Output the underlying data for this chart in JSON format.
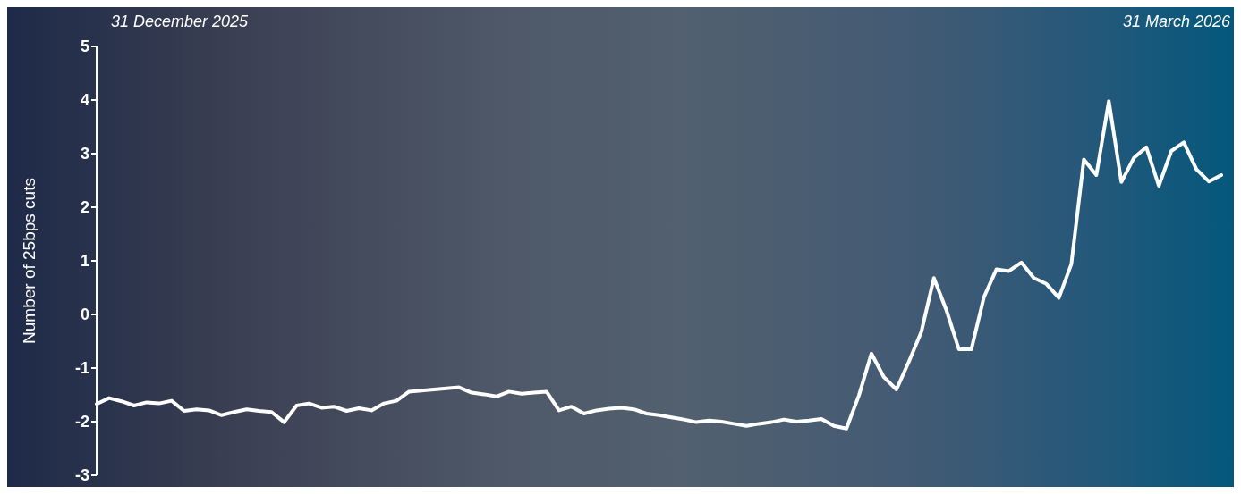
{
  "chart_data": {
    "type": "line",
    "ylabel": "Number of 25bps cuts",
    "annotations": [
      "31 December 2025",
      "31 March 2026"
    ],
    "ylim": [
      -3,
      5
    ],
    "yticks": [
      -3,
      -2,
      -1,
      0,
      1,
      2,
      3,
      4,
      5
    ],
    "grid": false,
    "marker": "none",
    "categories": [
      null,
      null,
      null,
      null,
      null,
      null,
      null,
      null,
      null,
      null,
      null,
      null,
      null,
      null,
      null,
      null,
      null,
      null,
      null,
      null,
      null,
      null,
      null,
      null,
      null,
      null,
      null,
      null,
      null,
      null,
      null,
      null,
      null,
      null,
      null,
      null,
      null,
      null,
      null,
      null,
      null,
      null,
      null,
      null,
      null,
      null,
      null,
      null,
      null,
      null,
      null,
      null,
      null,
      null,
      null,
      null,
      null,
      null,
      null,
      null,
      null,
      null,
      null,
      null,
      null,
      null,
      null,
      null,
      null,
      null,
      null,
      null,
      null,
      null,
      null,
      null,
      null,
      null,
      null,
      null,
      null,
      null,
      null,
      null,
      null,
      null,
      null,
      null,
      null,
      null,
      null
    ],
    "series": [
      {
        "color": "#ffffff",
        "values": [
          -1.67,
          -1.56,
          -1.62,
          -1.7,
          -1.64,
          -1.66,
          -1.61,
          -1.8,
          -1.77,
          -1.79,
          -1.88,
          -1.82,
          -1.77,
          -1.8,
          -1.82,
          -2.01,
          -1.7,
          -1.66,
          -1.74,
          -1.72,
          -1.8,
          -1.75,
          -1.79,
          -1.66,
          -1.61,
          -1.44,
          -1.42,
          -1.4,
          -1.38,
          -1.36,
          -1.46,
          -1.49,
          -1.53,
          -1.44,
          -1.48,
          -1.46,
          -1.44,
          -1.79,
          -1.72,
          -1.85,
          -1.79,
          -1.76,
          -1.74,
          -1.77,
          -1.85,
          -1.88,
          -1.92,
          -1.96,
          -2.01,
          -1.98,
          -2.0,
          -2.04,
          -2.08,
          -2.04,
          -2.01,
          -1.96,
          -2.0,
          -1.98,
          -1.95,
          -2.08,
          -2.13,
          -1.51,
          -0.73,
          -1.17,
          -1.4,
          -0.88,
          -0.32,
          0.68,
          0.08,
          -0.65,
          -0.65,
          0.32,
          0.84,
          0.81,
          0.97,
          0.68,
          0.57,
          0.31,
          0.94,
          2.89,
          2.6,
          3.98,
          2.47,
          2.92,
          3.12,
          2.4,
          3.05,
          3.21,
          2.71,
          2.48,
          2.6
        ]
      }
    ]
  }
}
